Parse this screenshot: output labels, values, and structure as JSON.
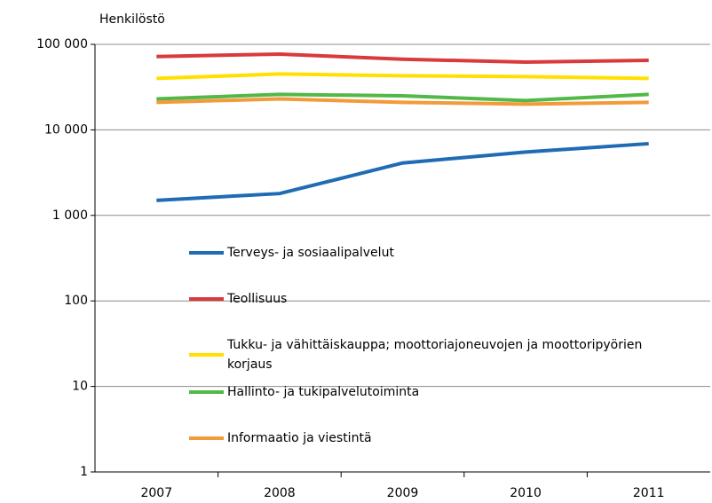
{
  "chart_data": {
    "type": "line",
    "y_label": "Henkilöstö",
    "x": [
      "2007",
      "2008",
      "2009",
      "2010",
      "2011"
    ],
    "log_scale": true,
    "grid": true,
    "legend_position": "center-left",
    "ylim": [
      1,
      100000
    ],
    "yticks": [
      1,
      10,
      100,
      {
        "value": 1000,
        "label": "1 000"
      },
      {
        "value": 10000,
        "label": "10 000"
      },
      {
        "value": 100000,
        "label": "100 000"
      }
    ],
    "series": [
      {
        "name": "Terveys- ja sosiaalipalvelut",
        "color": "#1f6bb4",
        "values": [
          1500,
          1800,
          4100,
          5500,
          6900
        ]
      },
      {
        "name": "Teollisuus",
        "color": "#d93a3a",
        "values": [
          72000,
          77000,
          67000,
          62000,
          65000
        ]
      },
      {
        "name": "Tukku- ja vähittäiskauppa; moottoriajoneuvojen ja moottoripyörien korjaus",
        "color": "#ffe000",
        "values": [
          40000,
          45000,
          43000,
          42000,
          40000
        ]
      },
      {
        "name": "Hallinto- ja tukipalvelutoiminta",
        "color": "#52b848",
        "values": [
          23000,
          26000,
          25000,
          22000,
          26000
        ]
      },
      {
        "name": "Informaatio ja viestintä",
        "color": "#f39a3a",
        "values": [
          21000,
          23000,
          21000,
          20000,
          21000
        ]
      }
    ]
  }
}
